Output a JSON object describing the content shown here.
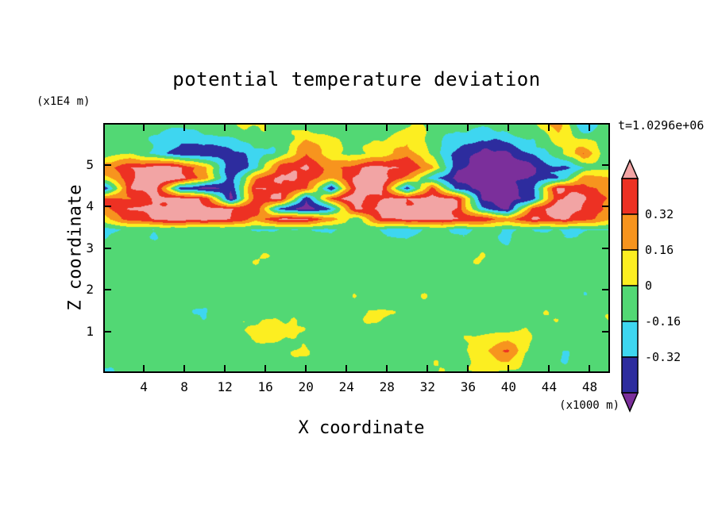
{
  "title": "potential temperature deviation",
  "timestamp": "t=1.0296e+06",
  "axes": {
    "x_label": "X coordinate",
    "x_unit": "(x1000 m)",
    "x_ticks": [
      4,
      8,
      12,
      16,
      20,
      24,
      28,
      32,
      36,
      40,
      44,
      48
    ],
    "x_range": [
      0,
      50
    ],
    "y_label": "Z coordinate",
    "y_unit": "(x1E4 m)",
    "y_ticks": [
      1,
      2,
      3,
      4,
      5
    ],
    "y_range": [
      0,
      6
    ]
  },
  "colorbar": {
    "boundary_labels": [
      "0.32",
      "0.16",
      "0",
      "-0.16",
      "-0.32"
    ],
    "cells_top_to_bottom": [
      {
        "color": "#ed3123",
        "range": "0.32..0.48"
      },
      {
        "color": "#f7941e",
        "range": "0.16..0.32"
      },
      {
        "color": "#fcee21",
        "range": "0..0.16"
      },
      {
        "color": "#52d874",
        "range": "-0.16..0"
      },
      {
        "color": "#3ed6f0",
        "range": "-0.32..-0.16"
      },
      {
        "color": "#2d2c9e",
        "range": "-0.48..-0.32"
      }
    ],
    "arrow_top": {
      "color": "#f2a4a4",
      "range": ">0.48"
    },
    "arrow_bottom": {
      "color": "#7b2f9b",
      "range": "<-0.48"
    }
  },
  "chart_data": {
    "type": "heatmap",
    "subtype": "filled_contour",
    "title": "potential temperature deviation",
    "xlabel": "X coordinate (x1000 m)",
    "ylabel": "Z coordinate (x1E4 m)",
    "time_label": "t=1.0296e+06",
    "x_range": [
      0,
      50
    ],
    "z_range": [
      0,
      6
    ],
    "contour_levels": [
      -0.48,
      -0.32,
      -0.16,
      0,
      0.16,
      0.32,
      0.48
    ],
    "band_colors_low_to_high": [
      "#7b2f9b",
      "#2d2c9e",
      "#3ed6f0",
      "#52d874",
      "#fcee21",
      "#f7941e",
      "#ed3123",
      "#f2a4a4"
    ],
    "grid_x": [
      0,
      2.5,
      5,
      7.5,
      10,
      12.5,
      15,
      17.5,
      20,
      22.5,
      25,
      27.5,
      30,
      32.5,
      35,
      37.5,
      40,
      42.5,
      45,
      47.5,
      50
    ],
    "grid_z": [
      0,
      0.5,
      1.0,
      1.5,
      2.0,
      2.5,
      3.0,
      3.45,
      3.7,
      3.95,
      4.2,
      4.45,
      4.7,
      4.95,
      5.3,
      6.0
    ],
    "values": [
      [
        -0.14,
        -0.06,
        -0.05,
        -0.06,
        -0.05,
        -0.05,
        -0.06,
        -0.05,
        -0.05,
        -0.06,
        -0.05,
        -0.14,
        -0.06,
        -0.05,
        -0.05,
        0.0,
        -0.05,
        -0.06,
        -0.14,
        -0.06,
        -0.05
      ],
      [
        -0.06,
        -0.05,
        -0.06,
        -0.05,
        -0.05,
        -0.14,
        -0.05,
        -0.06,
        -0.05,
        -0.05,
        -0.06,
        -0.05,
        -0.05,
        -0.06,
        -0.05,
        0.18,
        0.3,
        -0.02,
        -0.14,
        -0.06,
        -0.05
      ],
      [
        -0.05,
        -0.06,
        -0.14,
        -0.05,
        -0.06,
        -0.05,
        0.03,
        0.05,
        -0.05,
        -0.06,
        -0.05,
        -0.05,
        -0.14,
        -0.05,
        -0.06,
        -0.02,
        -0.05,
        -0.06,
        -0.05,
        -0.14,
        -0.06
      ],
      [
        -0.06,
        -0.05,
        -0.05,
        -0.06,
        -0.14,
        -0.05,
        -0.06,
        -0.05,
        -0.05,
        -0.14,
        -0.06,
        -0.05,
        -0.05,
        -0.06,
        -0.05,
        -0.05,
        -0.14,
        -0.05,
        -0.06,
        -0.05,
        -0.05
      ],
      [
        -0.05,
        -0.14,
        -0.06,
        -0.05,
        -0.05,
        -0.06,
        -0.05,
        -0.14,
        -0.06,
        -0.05,
        -0.05,
        -0.06,
        -0.05,
        -0.05,
        -0.14,
        -0.06,
        -0.05,
        -0.05,
        -0.06,
        -0.14,
        -0.05
      ],
      [
        -0.06,
        -0.05,
        -0.05,
        -0.14,
        -0.05,
        -0.06,
        -0.05,
        -0.05,
        -0.06,
        -0.05,
        -0.14,
        -0.05,
        -0.06,
        -0.05,
        -0.05,
        -0.06,
        -0.05,
        -0.14,
        -0.05,
        -0.06,
        -0.05
      ],
      [
        -0.05,
        -0.06,
        -0.14,
        -0.05,
        -0.06,
        -0.14,
        -0.05,
        -0.06,
        -0.05,
        -0.14,
        -0.05,
        -0.06,
        -0.14,
        -0.05,
        -0.06,
        -0.05,
        -0.14,
        -0.06,
        -0.05,
        -0.05,
        -0.06
      ],
      [
        -0.18,
        -0.15,
        -0.17,
        -0.14,
        -0.18,
        -0.16,
        -0.14,
        -0.17,
        -0.15,
        -0.18,
        -0.14,
        -0.17,
        -0.18,
        -0.15,
        -0.17,
        -0.14,
        -0.18,
        -0.16,
        -0.15,
        -0.17,
        -0.16
      ],
      [
        0.15,
        0.35,
        0.5,
        0.55,
        0.5,
        0.45,
        0.25,
        0.5,
        0.55,
        0.3,
        -0.15,
        0.45,
        0.55,
        0.5,
        0.55,
        0.45,
        0.25,
        0.5,
        0.55,
        0.4,
        0.2
      ],
      [
        0.3,
        0.5,
        0.55,
        0.55,
        0.5,
        0.55,
        0.45,
        -0.4,
        -0.55,
        -0.25,
        0.5,
        0.55,
        0.5,
        0.55,
        0.5,
        -0.3,
        -0.5,
        0.35,
        0.55,
        0.5,
        0.3
      ],
      [
        0.4,
        0.3,
        0.5,
        0.55,
        0.45,
        -0.5,
        0.45,
        0.55,
        -0.45,
        0.4,
        0.55,
        0.5,
        0.45,
        0.55,
        0.5,
        -0.5,
        -0.55,
        -0.45,
        0.45,
        0.55,
        0.3
      ],
      [
        -0.4,
        0.45,
        0.55,
        -0.45,
        -0.6,
        -0.4,
        0.5,
        0.55,
        0.4,
        -0.5,
        0.5,
        0.55,
        -0.45,
        0.4,
        -0.4,
        -0.6,
        -0.55,
        -0.4,
        0.5,
        0.45,
        0.25
      ],
      [
        0.15,
        0.45,
        0.6,
        0.5,
        0.25,
        -0.4,
        0.3,
        0.55,
        0.45,
        0.2,
        0.5,
        0.55,
        0.3,
        -0.25,
        -0.55,
        -0.6,
        -0.55,
        -0.5,
        -0.3,
        0.25,
        0.2
      ],
      [
        0.3,
        0.5,
        0.55,
        0.5,
        0.2,
        -0.45,
        -0.2,
        0.35,
        0.5,
        0.3,
        0.45,
        0.55,
        0.5,
        0.2,
        -0.5,
        -0.6,
        -0.55,
        -0.5,
        -0.35,
        -0.2,
        0.0
      ],
      [
        -0.05,
        0.0,
        -0.25,
        -0.45,
        -0.5,
        -0.35,
        -0.2,
        -0.05,
        0.3,
        0.1,
        -0.05,
        0.05,
        0.3,
        -0.05,
        -0.4,
        -0.55,
        -0.5,
        -0.35,
        -0.1,
        0.3,
        -0.15
      ],
      [
        -0.05,
        -0.06,
        -0.02,
        -0.08,
        -0.05,
        -0.06,
        -0.02,
        -0.05,
        -0.06,
        -0.02,
        -0.05,
        -0.08,
        -0.05,
        -0.05,
        -0.08,
        -0.15,
        -0.06,
        -0.02,
        0.25,
        -0.3,
        -0.08
      ]
    ],
    "texture_noise": {
      "amp_lower": 0.075,
      "amp_upper": 0.09,
      "wavelength_x": 2.2,
      "wavelength_z": 0.45
    }
  }
}
